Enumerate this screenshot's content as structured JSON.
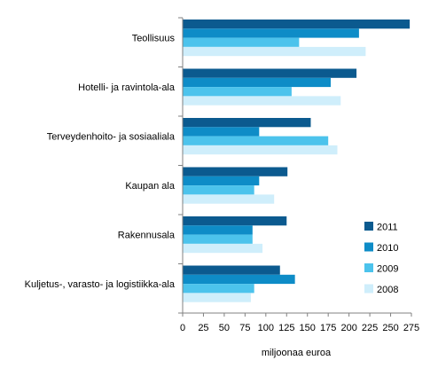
{
  "chart_data": {
    "type": "bar",
    "orientation": "horizontal",
    "categories": [
      "Teollisuus",
      "Hotelli- ja ravintola-ala",
      "Terveydenhoito- ja sosiaaliala",
      "Kaupan ala",
      "Rakennusala",
      "Kuljetus-, varasto- ja logistiikka-ala"
    ],
    "series": [
      {
        "name": "2011",
        "color": "#0b5a8f",
        "values": [
          273,
          209,
          154,
          126,
          125,
          117
        ]
      },
      {
        "name": "2010",
        "color": "#0e8cc7",
        "values": [
          212,
          178,
          92,
          92,
          84,
          135
        ]
      },
      {
        "name": "2009",
        "color": "#4cc3ec",
        "values": [
          140,
          131,
          175,
          86,
          84,
          86
        ]
      },
      {
        "name": "2008",
        "color": "#cfeefb",
        "values": [
          220,
          190,
          186,
          110,
          96,
          82
        ]
      }
    ],
    "xlabel": "miljoonaa euroa",
    "xlim": [
      0,
      275
    ],
    "xticks": [
      0,
      25,
      50,
      75,
      100,
      125,
      150,
      175,
      200,
      225,
      250,
      275
    ],
    "grid": false,
    "legend_position": "right, inside plot area",
    "legend_order": [
      "2011",
      "2010",
      "2009",
      "2008"
    ]
  }
}
